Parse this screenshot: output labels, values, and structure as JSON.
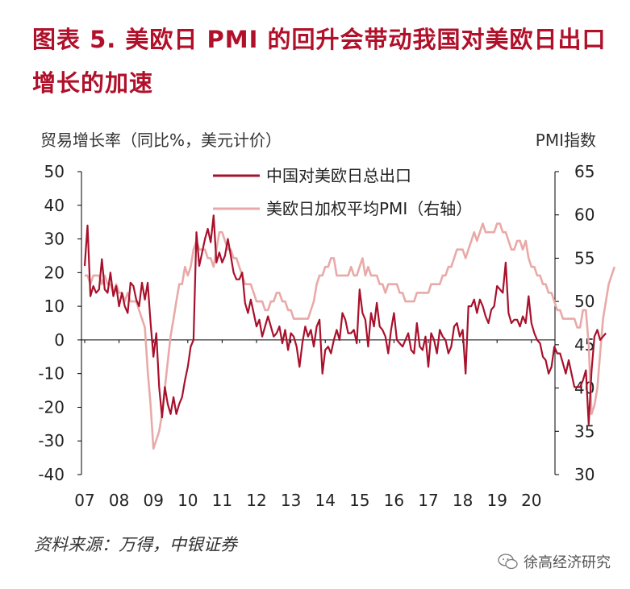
{
  "title": "图表 5.  美欧日 PMI 的回升会带动我国对美欧日出口增长的加速",
  "source": "资料来源：万得，中银证券",
  "watermark": {
    "text": "徐高经济研究",
    "icon": "wechat-icon"
  },
  "colors": {
    "title": "#b0102a",
    "series_export": "#a8102b",
    "series_pmi": "#e8aaa8",
    "axis": "#000000"
  },
  "chart_data": {
    "type": "line",
    "left_axis": {
      "label": "贸易增长率（同比%，美元计价）",
      "ylim": [
        -40,
        50
      ],
      "ticks": [
        50,
        40,
        30,
        20,
        10,
        0,
        -10,
        -20,
        -30,
        -40
      ]
    },
    "right_axis": {
      "label": "PMI指数",
      "ylim": [
        30,
        65
      ],
      "ticks": [
        65,
        60,
        55,
        50,
        45,
        40,
        35,
        30
      ]
    },
    "x_ticks": [
      "07",
      "08",
      "09",
      "10",
      "11",
      "12",
      "13",
      "14",
      "15",
      "16",
      "17",
      "18",
      "19",
      "20"
    ],
    "legend": {
      "placement": "top-center"
    },
    "series": [
      {
        "name": "中国对美欧日总出口",
        "axis": "left",
        "x_start": "2007-01",
        "values": [
          22,
          34,
          13,
          16,
          14,
          15,
          24,
          15,
          14,
          20,
          13,
          16,
          10,
          14,
          10,
          8,
          17,
          16,
          12,
          10,
          17,
          12,
          17,
          5,
          -5,
          2,
          -14,
          -23,
          -14,
          -19,
          -22,
          -17,
          -22,
          -19,
          -17,
          -12,
          -8,
          -2,
          0,
          32,
          22,
          26,
          30,
          33,
          29,
          37,
          23,
          26,
          23,
          25,
          30,
          25,
          20,
          18,
          18,
          20,
          11,
          8,
          12,
          8,
          4,
          6,
          1,
          4,
          7,
          4,
          1,
          2,
          4,
          -1,
          3,
          -3,
          2,
          1,
          -2,
          -8,
          -1,
          4,
          1,
          3,
          -2,
          4,
          6,
          -10,
          -3,
          -2,
          -4,
          0,
          3,
          0,
          8,
          6,
          2,
          2,
          3,
          -1,
          15,
          8,
          6,
          -2,
          8,
          4,
          11,
          4,
          3,
          1,
          -4,
          3,
          8,
          0,
          -1,
          -2,
          0,
          2,
          -3,
          -4,
          5,
          -2,
          -3,
          1,
          -8,
          2,
          0,
          -4,
          3,
          1,
          0,
          -4,
          -2,
          4,
          5,
          1,
          3,
          -10,
          10,
          10,
          12,
          8,
          12,
          10,
          7,
          5,
          9,
          10,
          16,
          15,
          14,
          23,
          8,
          5,
          6,
          6,
          4,
          7,
          5,
          13,
          5,
          2,
          0,
          -1,
          -5,
          -6,
          -10,
          -8,
          -2,
          -4,
          -4,
          -7,
          -10,
          -6,
          -10,
          -14,
          -14,
          -14,
          -12,
          -9,
          -25,
          -9,
          1,
          3,
          0,
          1,
          2
        ]
      },
      {
        "name": "美欧日加权平均PMI（右轴）",
        "axis": "right",
        "x_start": "2007-01",
        "values": [
          53,
          53,
          52,
          53,
          53,
          53,
          52,
          53,
          52,
          52,
          51,
          52,
          51,
          51,
          50,
          51,
          50,
          50,
          50,
          49,
          48,
          47,
          42,
          38,
          33,
          34,
          35,
          37,
          40,
          43,
          46,
          48,
          50,
          52,
          52,
          54,
          53,
          54,
          56,
          57,
          56,
          56,
          56,
          55,
          55,
          54,
          56,
          58,
          58,
          57,
          56,
          56,
          55,
          55,
          54,
          53,
          52,
          52,
          52,
          51,
          50,
          50,
          50,
          49,
          49,
          50,
          50,
          51,
          51,
          50,
          50,
          49,
          49,
          48,
          48,
          48,
          48,
          48,
          48,
          49,
          50,
          52,
          53,
          53,
          54,
          54,
          55,
          55,
          53,
          53,
          53,
          53,
          53,
          54,
          53,
          53,
          54,
          55,
          53,
          54,
          53,
          53,
          53,
          52,
          52,
          51,
          52,
          52,
          52,
          52,
          51,
          51,
          50,
          50,
          50,
          50,
          51,
          51,
          51,
          51,
          51,
          52,
          52,
          52,
          52,
          53,
          53,
          54,
          54,
          55,
          56,
          56,
          56,
          55,
          56,
          57,
          58,
          57,
          58,
          59,
          58,
          58,
          58,
          58,
          59,
          59,
          58,
          58,
          57,
          56,
          56,
          57,
          57,
          56,
          57,
          55,
          54,
          54,
          53,
          53,
          52,
          52,
          51,
          51,
          50,
          49,
          49,
          48,
          48,
          48,
          48,
          48,
          47,
          47,
          49,
          49,
          45,
          37,
          38,
          40,
          44,
          48,
          50,
          52,
          53,
          54
        ]
      }
    ]
  }
}
